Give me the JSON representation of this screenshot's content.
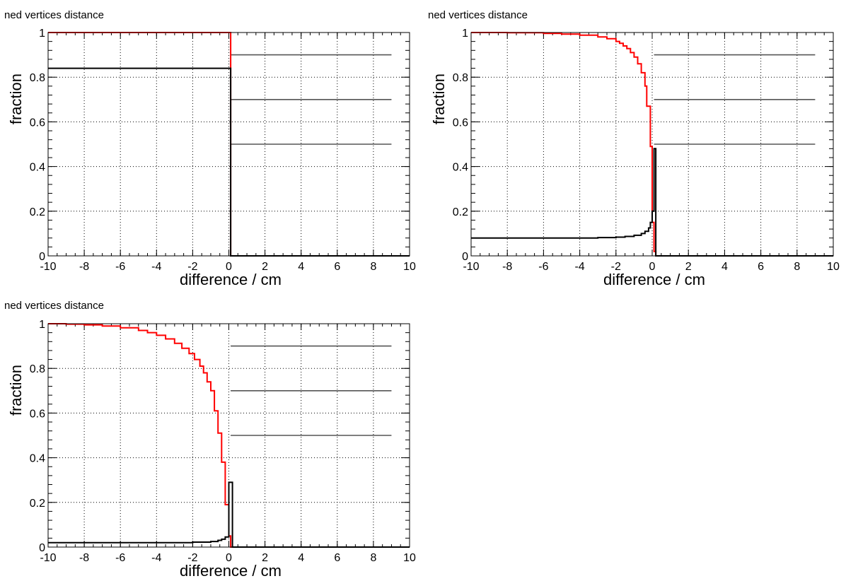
{
  "chart_data": [
    {
      "type": "line",
      "title": "ned vertices distance",
      "xlabel": "difference /  cm",
      "ylabel": "fraction",
      "xlim": [
        -10,
        10
      ],
      "ylim": [
        0,
        1
      ],
      "xticks": [
        "-10",
        "-8",
        "-6",
        "-4",
        "-2",
        "0",
        "2",
        "4",
        "6",
        "8",
        "10"
      ],
      "yticks": [
        "0",
        "0.2",
        "0.4",
        "0.6",
        "0.8",
        "1"
      ],
      "grid": true,
      "series": [
        {
          "color": "#ff0000",
          "points": [
            [
              -10,
              1.0
            ],
            [
              0.1,
              1.0
            ],
            [
              0.1,
              0.0
            ],
            [
              10,
              0.0
            ]
          ]
        },
        {
          "color": "#000000",
          "points": [
            [
              -10,
              0.84
            ],
            [
              0.1,
              0.84
            ],
            [
              0.1,
              0.0
            ],
            [
              10,
              0.0
            ]
          ]
        }
      ],
      "reference_lines": [
        {
          "y": 0.9,
          "x": [
            0.1,
            9.0
          ],
          "color": "#555555"
        },
        {
          "y": 0.7,
          "x": [
            0.1,
            9.0
          ],
          "color": "#555555"
        },
        {
          "y": 0.5,
          "x": [
            0.1,
            9.0
          ],
          "color": "#555555"
        }
      ]
    },
    {
      "type": "line",
      "title": "ned vertices distance",
      "xlabel": "difference /  cm",
      "ylabel": "fraction",
      "xlim": [
        -10,
        10
      ],
      "ylim": [
        0,
        1
      ],
      "xticks": [
        "-10",
        "-8",
        "-6",
        "-4",
        "-2",
        "0",
        "2",
        "4",
        "6",
        "8",
        "10"
      ],
      "yticks": [
        "0",
        "0.2",
        "0.4",
        "0.6",
        "0.8",
        "1"
      ],
      "grid": true,
      "series": [
        {
          "color": "#ff0000",
          "points": [
            [
              -10,
              1.0
            ],
            [
              -8,
              0.999
            ],
            [
              -6,
              0.996
            ],
            [
              -5,
              0.993
            ],
            [
              -4,
              0.988
            ],
            [
              -3,
              0.98
            ],
            [
              -2.5,
              0.972
            ],
            [
              -2,
              0.96
            ],
            [
              -1.8,
              0.952
            ],
            [
              -1.6,
              0.94
            ],
            [
              -1.4,
              0.928
            ],
            [
              -1.2,
              0.91
            ],
            [
              -1.0,
              0.89
            ],
            [
              -0.8,
              0.86
            ],
            [
              -0.6,
              0.82
            ],
            [
              -0.4,
              0.76
            ],
            [
              -0.3,
              0.67
            ],
            [
              -0.1,
              0.49
            ],
            [
              0.0,
              0.15
            ],
            [
              0.1,
              0.02
            ],
            [
              0.2,
              0.0
            ],
            [
              10,
              0.0
            ]
          ]
        },
        {
          "color": "#000000",
          "points": [
            [
              -10,
              0.08
            ],
            [
              -4,
              0.08
            ],
            [
              -3,
              0.082
            ],
            [
              -2,
              0.084
            ],
            [
              -1.5,
              0.087
            ],
            [
              -1.0,
              0.092
            ],
            [
              -0.6,
              0.1
            ],
            [
              -0.4,
              0.11
            ],
            [
              -0.2,
              0.125
            ],
            [
              -0.1,
              0.15
            ],
            [
              0.0,
              0.2
            ],
            [
              0.1,
              0.48
            ],
            [
              0.2,
              0.0
            ],
            [
              10,
              0.0
            ]
          ]
        }
      ],
      "reference_lines": [
        {
          "y": 0.9,
          "x": [
            0.1,
            9.0
          ],
          "color": "#555555"
        },
        {
          "y": 0.7,
          "x": [
            0.1,
            9.0
          ],
          "color": "#555555"
        },
        {
          "y": 0.5,
          "x": [
            0.1,
            9.0
          ],
          "color": "#555555"
        }
      ]
    },
    {
      "type": "line",
      "title": "ned vertices distance",
      "xlabel": "difference /  cm",
      "ylabel": "fraction",
      "xlim": [
        -10,
        10
      ],
      "ylim": [
        0,
        1
      ],
      "xticks": [
        "-10",
        "-8",
        "-6",
        "-4",
        "-2",
        "0",
        "2",
        "4",
        "6",
        "8",
        "10"
      ],
      "yticks": [
        "0",
        "0.2",
        "0.4",
        "0.6",
        "0.8",
        "1"
      ],
      "grid": true,
      "series": [
        {
          "color": "#ff0000",
          "points": [
            [
              -10,
              1.0
            ],
            [
              -9,
              0.998
            ],
            [
              -8,
              0.995
            ],
            [
              -7,
              0.99
            ],
            [
              -6,
              0.982
            ],
            [
              -5,
              0.97
            ],
            [
              -4.5,
              0.96
            ],
            [
              -4,
              0.948
            ],
            [
              -3.5,
              0.932
            ],
            [
              -3,
              0.912
            ],
            [
              -2.6,
              0.89
            ],
            [
              -2.2,
              0.866
            ],
            [
              -1.9,
              0.84
            ],
            [
              -1.6,
              0.81
            ],
            [
              -1.4,
              0.78
            ],
            [
              -1.2,
              0.74
            ],
            [
              -1.0,
              0.7
            ],
            [
              -0.8,
              0.61
            ],
            [
              -0.6,
              0.51
            ],
            [
              -0.4,
              0.38
            ],
            [
              -0.2,
              0.19
            ],
            [
              0.0,
              0.05
            ],
            [
              0.1,
              0.0
            ],
            [
              10,
              0.0
            ]
          ]
        },
        {
          "color": "#000000",
          "points": [
            [
              -10,
              0.02
            ],
            [
              -4,
              0.02
            ],
            [
              -2,
              0.022
            ],
            [
              -1.0,
              0.025
            ],
            [
              -0.6,
              0.03
            ],
            [
              -0.4,
              0.035
            ],
            [
              -0.2,
              0.045
            ],
            [
              0.0,
              0.29
            ],
            [
              0.2,
              0.0
            ],
            [
              10,
              0.0
            ]
          ]
        }
      ],
      "reference_lines": [
        {
          "y": 0.9,
          "x": [
            0.1,
            9.0
          ],
          "color": "#555555"
        },
        {
          "y": 0.7,
          "x": [
            0.1,
            9.0
          ],
          "color": "#555555"
        },
        {
          "y": 0.5,
          "x": [
            0.1,
            9.0
          ],
          "color": "#555555"
        }
      ]
    }
  ]
}
